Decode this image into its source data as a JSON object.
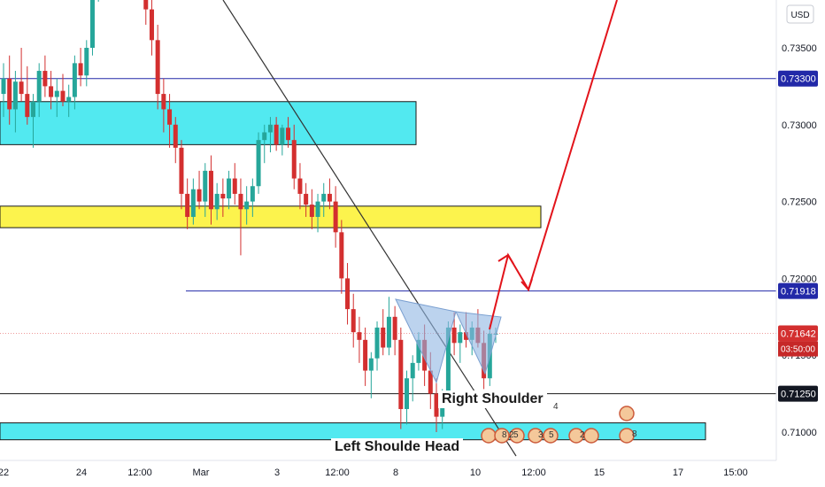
{
  "currency_label": "USD",
  "colors": {
    "bull": "#26a69a",
    "bear": "#d32f2f",
    "blue_line": "#2229a8",
    "black_line": "#1a1a1a",
    "zone_cyan": "#3fe7ee",
    "zone_yellow": "#fcf23a",
    "triangle": "#8fb5e3",
    "arrow": "#e2141b",
    "price_tag": "#d32f2f",
    "countdown": "#c62828"
  },
  "y_axis": {
    "ticks": [
      "0.73500",
      "0.73000",
      "0.72500",
      "0.72000",
      "0.71500",
      "0.71000"
    ],
    "tick_values": [
      0.735,
      0.73,
      0.725,
      0.72,
      0.715,
      0.71
    ]
  },
  "x_axis": {
    "ticks": [
      "22",
      "24",
      "12:00",
      "Mar",
      "3",
      "12:00",
      "8",
      "10",
      "12:00",
      "15",
      "17",
      "15:00"
    ]
  },
  "price_labels": [
    {
      "text": "0.73300",
      "value": 0.733,
      "style": "blue"
    },
    {
      "text": "0.71918",
      "value": 0.71918,
      "style": "blue"
    },
    {
      "text": "0.71642",
      "value": 0.71642,
      "style": "red"
    },
    {
      "text": "0.71250",
      "value": 0.7125,
      "style": "black"
    }
  ],
  "countdown": "03:50:00",
  "annotations": {
    "left_shoulder": "Left Shoulder",
    "head": "Head",
    "right_shoulder": "Right Shoulder"
  },
  "event_badges": [
    "4",
    "8",
    "2",
    "5",
    "3",
    "5",
    "2",
    "8"
  ],
  "chart_data": {
    "type": "candlestick",
    "y_unit": "USD",
    "horizontal_levels": [
      0.733,
      0.71918,
      0.71642,
      0.7125
    ],
    "zones": [
      {
        "color": "cyan",
        "from": 0.7287,
        "to": 0.7315
      },
      {
        "color": "yellow",
        "from": 0.7233,
        "to": 0.7247
      },
      {
        "color": "cyan",
        "from": 0.7095,
        "to": 0.7106
      }
    ],
    "candles": [
      [
        0.732,
        0.734,
        0.7305,
        0.733
      ],
      [
        0.733,
        0.7345,
        0.73,
        0.731
      ],
      [
        0.731,
        0.7335,
        0.7295,
        0.7328
      ],
      [
        0.7328,
        0.735,
        0.7315,
        0.732
      ],
      [
        0.732,
        0.7338,
        0.73,
        0.7305
      ],
      [
        0.7305,
        0.732,
        0.7285,
        0.7315
      ],
      [
        0.7315,
        0.734,
        0.7305,
        0.7335
      ],
      [
        0.7335,
        0.7345,
        0.7318,
        0.7325
      ],
      [
        0.7325,
        0.7335,
        0.731,
        0.7318
      ],
      [
        0.7318,
        0.733,
        0.7305,
        0.7322
      ],
      [
        0.7322,
        0.7333,
        0.7312,
        0.7315
      ],
      [
        0.7315,
        0.7326,
        0.7305,
        0.7318
      ],
      [
        0.7318,
        0.7345,
        0.731,
        0.734
      ],
      [
        0.734,
        0.735,
        0.7325,
        0.7332
      ],
      [
        0.7332,
        0.7355,
        0.7325,
        0.735
      ],
      [
        0.735,
        0.74,
        0.7345,
        0.7395
      ],
      [
        0.7395,
        0.742,
        0.738,
        0.741
      ],
      [
        0.741,
        0.743,
        0.739,
        0.74
      ],
      [
        0.74,
        0.742,
        0.739,
        0.7415
      ],
      [
        0.7415,
        0.7422,
        0.7398,
        0.7405
      ],
      [
        0.7405,
        0.7418,
        0.7395,
        0.7412
      ],
      [
        0.7412,
        0.742,
        0.74,
        0.7408
      ],
      [
        0.7408,
        0.7415,
        0.739,
        0.7398
      ],
      [
        0.7398,
        0.741,
        0.7385,
        0.7392
      ],
      [
        0.7392,
        0.74,
        0.7365,
        0.7375
      ],
      [
        0.7375,
        0.7385,
        0.7345,
        0.7355
      ],
      [
        0.7355,
        0.7365,
        0.731,
        0.732
      ],
      [
        0.732,
        0.733,
        0.7295,
        0.731
      ],
      [
        0.731,
        0.732,
        0.7285,
        0.73
      ],
      [
        0.73,
        0.7305,
        0.7275,
        0.7285
      ],
      [
        0.7285,
        0.729,
        0.7245,
        0.7255
      ],
      [
        0.7255,
        0.7265,
        0.7232,
        0.724
      ],
      [
        0.724,
        0.7265,
        0.7235,
        0.7258
      ],
      [
        0.7258,
        0.727,
        0.7245,
        0.725
      ],
      [
        0.725,
        0.7275,
        0.724,
        0.727
      ],
      [
        0.727,
        0.728,
        0.7235,
        0.7245
      ],
      [
        0.7245,
        0.7262,
        0.7238,
        0.7255
      ],
      [
        0.7255,
        0.7265,
        0.724,
        0.7252
      ],
      [
        0.7252,
        0.727,
        0.7245,
        0.7265
      ],
      [
        0.7265,
        0.7275,
        0.7248,
        0.7255
      ],
      [
        0.7255,
        0.7265,
        0.7215,
        0.7245
      ],
      [
        0.7245,
        0.726,
        0.7235,
        0.725
      ],
      [
        0.725,
        0.7265,
        0.724,
        0.726
      ],
      [
        0.726,
        0.7295,
        0.7255,
        0.729
      ],
      [
        0.729,
        0.73,
        0.7275,
        0.7295
      ],
      [
        0.7295,
        0.7305,
        0.7282,
        0.73
      ],
      [
        0.73,
        0.7305,
        0.7283,
        0.7287
      ],
      [
        0.7287,
        0.73,
        0.728,
        0.7298
      ],
      [
        0.7298,
        0.7305,
        0.7285,
        0.729
      ],
      [
        0.729,
        0.73,
        0.7258,
        0.7265
      ],
      [
        0.7265,
        0.7275,
        0.7245,
        0.7255
      ],
      [
        0.7255,
        0.7262,
        0.724,
        0.7248
      ],
      [
        0.7248,
        0.7258,
        0.7232,
        0.724
      ],
      [
        0.724,
        0.7255,
        0.723,
        0.725
      ],
      [
        0.725,
        0.7262,
        0.724,
        0.7255
      ],
      [
        0.7255,
        0.7265,
        0.7245,
        0.725
      ],
      [
        0.725,
        0.726,
        0.722,
        0.723
      ],
      [
        0.723,
        0.7238,
        0.719,
        0.72
      ],
      [
        0.72,
        0.721,
        0.717,
        0.718
      ],
      [
        0.718,
        0.719,
        0.7155,
        0.7165
      ],
      [
        0.7165,
        0.7175,
        0.7145,
        0.716
      ],
      [
        0.716,
        0.7168,
        0.713,
        0.714
      ],
      [
        0.714,
        0.7152,
        0.7122,
        0.7148
      ],
      [
        0.7148,
        0.7172,
        0.714,
        0.7168
      ],
      [
        0.7168,
        0.718,
        0.715,
        0.7155
      ],
      [
        0.7155,
        0.7188,
        0.715,
        0.7175
      ],
      [
        0.7175,
        0.7182,
        0.715,
        0.716
      ],
      [
        0.716,
        0.7168,
        0.7102,
        0.7115
      ],
      [
        0.7115,
        0.714,
        0.7105,
        0.7135
      ],
      [
        0.7135,
        0.715,
        0.712,
        0.7145
      ],
      [
        0.7145,
        0.7165,
        0.714,
        0.716
      ],
      [
        0.716,
        0.717,
        0.713,
        0.714
      ],
      [
        0.714,
        0.7152,
        0.7115,
        0.7125
      ],
      [
        0.7125,
        0.7135,
        0.71,
        0.711
      ],
      [
        0.711,
        0.7128,
        0.7102,
        0.7122
      ],
      [
        0.7122,
        0.7172,
        0.7118,
        0.7168
      ],
      [
        0.7168,
        0.7178,
        0.715,
        0.7158
      ],
      [
        0.7158,
        0.717,
        0.7145,
        0.7165
      ],
      [
        0.7165,
        0.7178,
        0.7155,
        0.716
      ],
      [
        0.716,
        0.7172,
        0.715,
        0.7168
      ],
      [
        0.7168,
        0.718,
        0.7155,
        0.7158
      ],
      [
        0.7158,
        0.7166,
        0.7128,
        0.7135
      ],
      [
        0.7135,
        0.717,
        0.713,
        0.7164
      ],
      [
        0.7164,
        0.7168,
        0.7158,
        0.7164
      ]
    ]
  }
}
